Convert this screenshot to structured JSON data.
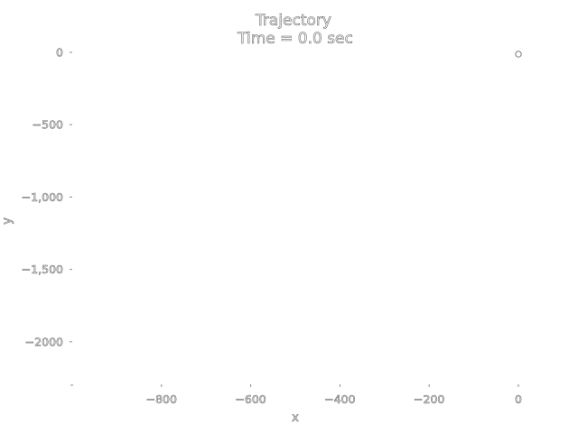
{
  "chart_data": {
    "type": "scatter",
    "title": "Trajectory",
    "subtitle": "Time = 0.0 sec",
    "xlabel": "x",
    "ylabel": "y",
    "xlim": [
      -1000,
      0
    ],
    "ylim": [
      -2300,
      0
    ],
    "x_ticks": [
      -800,
      -600,
      -400,
      -200,
      0
    ],
    "x_tick_labels": [
      "−800",
      "−600",
      "−400",
      "−200",
      "0"
    ],
    "y_ticks": [
      0,
      -500,
      -1000,
      -1500,
      -2000
    ],
    "y_tick_labels": [
      "0",
      "−500",
      "−1,000",
      "−1,500",
      "−2000"
    ],
    "grid": false,
    "series": [
      {
        "x": [
          0
        ],
        "y": [
          0
        ],
        "marker": "ring"
      }
    ],
    "colors": {
      "text_outline": "#6b6b6b",
      "background": "#ffffff"
    }
  }
}
